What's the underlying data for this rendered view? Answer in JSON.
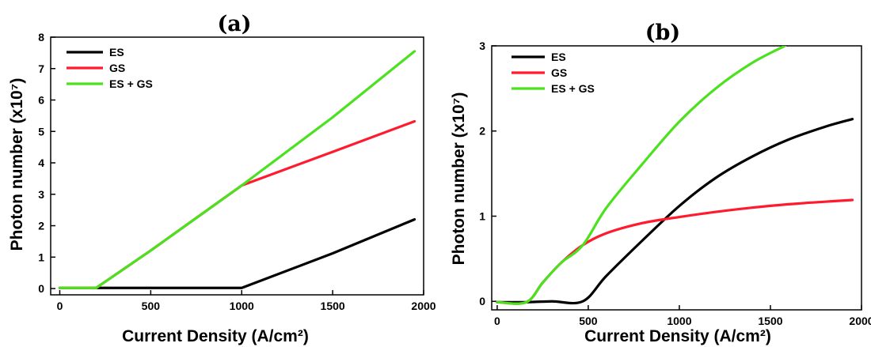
{
  "chart_data": [
    {
      "type": "line",
      "panel_label": "(a)",
      "xlabel": "Current Density (A/cm²)",
      "ylabel": "Photon number (x10⁷)",
      "xlim": [
        -50,
        2000
      ],
      "ylim": [
        -0.2,
        8
      ],
      "xticks": [
        0,
        500,
        1000,
        1500,
        2000
      ],
      "yticks": [
        0,
        1,
        2,
        3,
        4,
        5,
        6,
        7,
        8
      ],
      "grid": false,
      "legend_position": "top-left",
      "series": [
        {
          "name": "ES",
          "color": "#000000",
          "x": [
            0,
            200,
            500,
            1000,
            1500,
            1950
          ],
          "y": [
            0.02,
            0.02,
            0.02,
            0.02,
            1.12,
            2.2
          ]
        },
        {
          "name": "GS",
          "color": "#ff1a2e",
          "x": [
            0,
            200,
            500,
            1000,
            1500,
            1950
          ],
          "y": [
            0.02,
            0.02,
            1.21,
            3.28,
            4.35,
            5.32
          ]
        },
        {
          "name": "ES + GS",
          "color": "#4be11f",
          "x": [
            0,
            200,
            500,
            1000,
            1500,
            1950
          ],
          "y": [
            0.02,
            0.02,
            1.21,
            3.28,
            5.45,
            7.55
          ]
        }
      ]
    },
    {
      "type": "line",
      "panel_label": "(b)",
      "xlabel": "Current Density (A/cm²)",
      "ylabel": "Photon number (x10⁷)",
      "xlim": [
        -30,
        2000
      ],
      "ylim": [
        -0.1,
        3
      ],
      "xticks": [
        0,
        500,
        1000,
        1500,
        2000
      ],
      "yticks": [
        0,
        1,
        2,
        3
      ],
      "grid": false,
      "legend_position": "top-left",
      "series": [
        {
          "name": "ES",
          "color": "#000000",
          "x": [
            0,
            150,
            300,
            470,
            600,
            800,
            1000,
            1200,
            1400,
            1600,
            1800,
            1950
          ],
          "y": [
            -0.01,
            -0.01,
            0.0,
            0.0,
            0.3,
            0.72,
            1.12,
            1.45,
            1.7,
            1.9,
            2.05,
            2.14
          ]
        },
        {
          "name": "GS",
          "color": "#ff1a2e",
          "x": [
            0,
            160,
            250,
            350,
            470,
            600,
            800,
            1000,
            1200,
            1400,
            1600,
            1800,
            1950
          ],
          "y": [
            -0.01,
            -0.01,
            0.22,
            0.45,
            0.66,
            0.8,
            0.92,
            0.99,
            1.05,
            1.1,
            1.14,
            1.17,
            1.19
          ]
        },
        {
          "name": "ES + GS",
          "color": "#4be11f",
          "x": [
            0,
            160,
            250,
            350,
            470,
            600,
            800,
            1000,
            1200,
            1400,
            1580
          ],
          "y": [
            -0.01,
            -0.01,
            0.22,
            0.45,
            0.66,
            1.1,
            1.62,
            2.11,
            2.5,
            2.8,
            3.0
          ]
        }
      ]
    }
  ]
}
